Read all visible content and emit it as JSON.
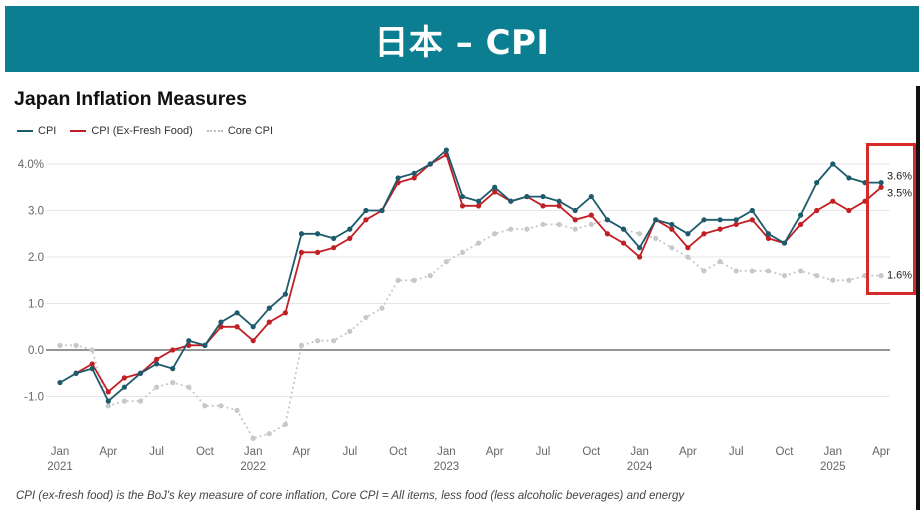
{
  "banner": {
    "text": "日本 – CPI"
  },
  "title": "Japan Inflation Measures",
  "footnote": "CPI (ex-fresh food) is the BoJ's key measure of core inflation, Core CPI = All items, less food (less alcoholic beverages) and energy",
  "colors": {
    "banner": "#0b7f91",
    "cpi": "#1d5b6c",
    "cpi_ex_fresh": "#c01f24",
    "core": "#c8c8c8",
    "callout": "#d42a2a"
  },
  "chart_data": {
    "type": "line",
    "title": "Japan Inflation Measures",
    "xlabel": "",
    "ylabel": "",
    "ylim": [
      -2.0,
      4.5
    ],
    "yticks": [
      4.0,
      3.0,
      2.0,
      1.0,
      0.0,
      -1.0
    ],
    "ytick_labels": [
      "4.0%",
      "3.0",
      "2.0",
      "1.0",
      "0.0",
      "-1.0"
    ],
    "x": [
      "2021-01",
      "2021-02",
      "2021-03",
      "2021-04",
      "2021-05",
      "2021-06",
      "2021-07",
      "2021-08",
      "2021-09",
      "2021-10",
      "2021-11",
      "2021-12",
      "2022-01",
      "2022-02",
      "2022-03",
      "2022-04",
      "2022-05",
      "2022-06",
      "2022-07",
      "2022-08",
      "2022-09",
      "2022-10",
      "2022-11",
      "2022-12",
      "2023-01",
      "2023-02",
      "2023-03",
      "2023-04",
      "2023-05",
      "2023-06",
      "2023-07",
      "2023-08",
      "2023-09",
      "2023-10",
      "2023-11",
      "2023-12",
      "2024-01",
      "2024-02",
      "2024-03",
      "2024-04",
      "2024-05",
      "2024-06",
      "2024-07",
      "2024-08",
      "2024-09",
      "2024-10",
      "2024-11",
      "2024-12",
      "2025-01",
      "2025-02",
      "2025-03",
      "2025-04"
    ],
    "xticks": [
      {
        "label": "Jan",
        "sub": "2021"
      },
      {
        "label": "Apr",
        "sub": ""
      },
      {
        "label": "Jul",
        "sub": ""
      },
      {
        "label": "Oct",
        "sub": ""
      },
      {
        "label": "Jan",
        "sub": "2022"
      },
      {
        "label": "Apr",
        "sub": ""
      },
      {
        "label": "Jul",
        "sub": ""
      },
      {
        "label": "Oct",
        "sub": ""
      },
      {
        "label": "Jan",
        "sub": "2023"
      },
      {
        "label": "Apr",
        "sub": ""
      },
      {
        "label": "Jul",
        "sub": ""
      },
      {
        "label": "Oct",
        "sub": ""
      },
      {
        "label": "Jan",
        "sub": "2024"
      },
      {
        "label": "Apr",
        "sub": ""
      },
      {
        "label": "Jul",
        "sub": ""
      },
      {
        "label": "Oct",
        "sub": ""
      },
      {
        "label": "Jan",
        "sub": "2025"
      },
      {
        "label": "Apr",
        "sub": ""
      }
    ],
    "series": [
      {
        "name": "CPI",
        "style": "solid",
        "color": "#1d5b6c",
        "end_label": "3.6%",
        "values": [
          -0.7,
          -0.5,
          -0.4,
          -1.1,
          -0.8,
          -0.5,
          -0.3,
          -0.4,
          0.2,
          0.1,
          0.6,
          0.8,
          0.5,
          0.9,
          1.2,
          2.5,
          2.5,
          2.4,
          2.6,
          3.0,
          3.0,
          3.7,
          3.8,
          4.0,
          4.3,
          3.3,
          3.2,
          3.5,
          3.2,
          3.3,
          3.3,
          3.2,
          3.0,
          3.3,
          2.8,
          2.6,
          2.2,
          2.8,
          2.7,
          2.5,
          2.8,
          2.8,
          2.8,
          3.0,
          2.5,
          2.3,
          2.9,
          3.6,
          4.0,
          3.7,
          3.6,
          3.6
        ]
      },
      {
        "name": "CPI (Ex-Fresh Food)",
        "style": "solid",
        "color": "#c01f24",
        "end_label": "3.5%",
        "values": [
          null,
          -0.5,
          -0.3,
          -0.9,
          -0.6,
          -0.5,
          -0.2,
          0.0,
          0.1,
          0.1,
          0.5,
          0.5,
          0.2,
          0.6,
          0.8,
          2.1,
          2.1,
          2.2,
          2.4,
          2.8,
          3.0,
          3.6,
          3.7,
          4.0,
          4.2,
          3.1,
          3.1,
          3.4,
          3.2,
          3.3,
          3.1,
          3.1,
          2.8,
          2.9,
          2.5,
          2.3,
          2.0,
          2.8,
          2.6,
          2.2,
          2.5,
          2.6,
          2.7,
          2.8,
          2.4,
          2.3,
          2.7,
          3.0,
          3.2,
          3.0,
          3.2,
          3.5
        ]
      },
      {
        "name": "Core CPI",
        "style": "dotted",
        "color": "#c8c8c8",
        "end_label": "1.6%",
        "values": [
          0.1,
          0.1,
          0.0,
          -1.2,
          -1.1,
          -1.1,
          -0.8,
          -0.7,
          -0.8,
          -1.2,
          -1.2,
          -1.3,
          -1.9,
          -1.8,
          -1.6,
          0.1,
          0.2,
          0.2,
          0.4,
          0.7,
          0.9,
          1.5,
          1.5,
          1.6,
          1.9,
          2.1,
          2.3,
          2.5,
          2.6,
          2.6,
          2.7,
          2.7,
          2.6,
          2.7,
          2.8,
          2.6,
          2.5,
          2.4,
          2.2,
          2.0,
          1.7,
          1.9,
          1.7,
          1.7,
          1.7,
          1.6,
          1.7,
          1.6,
          1.5,
          1.5,
          1.6,
          1.6
        ]
      }
    ],
    "grid": true,
    "legend": "top-left"
  }
}
